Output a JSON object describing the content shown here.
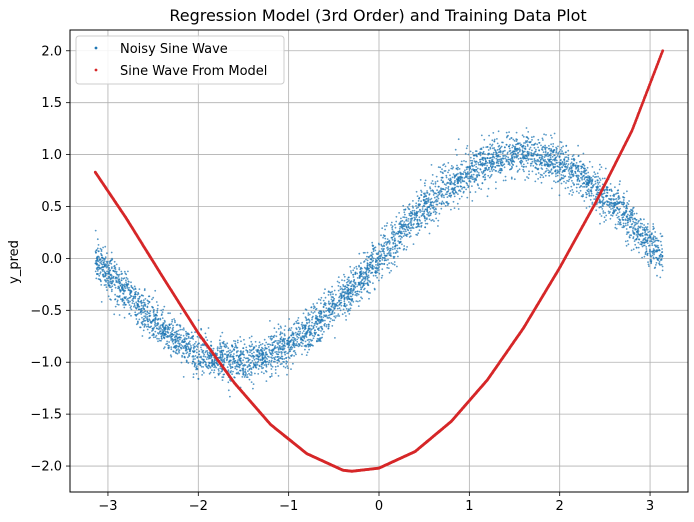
{
  "chart_data": {
    "type": "scatter",
    "title": "Regression Model (3rd Order) and Training Data Plot",
    "xlabel": "",
    "ylabel": "y_pred",
    "xlim": [
      -3.42,
      3.42
    ],
    "ylim": [
      -2.25,
      2.2
    ],
    "x_ticks": [
      -3,
      -2,
      -1,
      0,
      1,
      2,
      3
    ],
    "x_tick_labels": [
      "−3",
      "−2",
      "−1",
      "0",
      "1",
      "2",
      "3"
    ],
    "y_ticks": [
      -2.0,
      -1.5,
      -1.0,
      -0.5,
      0.0,
      0.5,
      1.0,
      1.5,
      2.0
    ],
    "y_tick_labels": [
      "−2.0",
      "−1.5",
      "−1.0",
      "−0.5",
      "0.0",
      "0.5",
      "1.0",
      "1.5",
      "2.0"
    ],
    "grid": true,
    "legend_position": "top-left",
    "series": [
      {
        "name": "Noisy Sine Wave",
        "color": "#1f77b4",
        "x": [
          -3.14,
          -3.0,
          -2.8,
          -2.6,
          -2.4,
          -2.2,
          -2.0,
          -1.8,
          -1.6,
          -1.4,
          -1.2,
          -1.0,
          -0.8,
          -0.6,
          -0.4,
          -0.2,
          0.0,
          0.2,
          0.4,
          0.6,
          0.8,
          1.0,
          1.2,
          1.4,
          1.6,
          1.8,
          2.0,
          2.2,
          2.4,
          2.6,
          2.8,
          3.0,
          3.14
        ],
        "y": [
          0.0,
          -0.14,
          -0.33,
          -0.52,
          -0.68,
          -0.81,
          -0.91,
          -0.97,
          -1.0,
          -0.99,
          -0.93,
          -0.84,
          -0.72,
          -0.56,
          -0.39,
          -0.2,
          0.0,
          0.2,
          0.39,
          0.56,
          0.72,
          0.84,
          0.93,
          0.99,
          1.0,
          0.97,
          0.91,
          0.81,
          0.68,
          0.52,
          0.33,
          0.14,
          0.0
        ],
        "noise_std": 0.1
      },
      {
        "name": "Sine Wave From Model",
        "color": "#d62728",
        "x": [
          -3.14,
          -2.8,
          -2.4,
          -2.0,
          -1.6,
          -1.2,
          -0.8,
          -0.4,
          -0.3,
          0.0,
          0.4,
          0.8,
          1.2,
          1.6,
          2.0,
          2.4,
          2.8,
          3.14
        ],
        "y": [
          0.83,
          0.39,
          -0.17,
          -0.72,
          -1.2,
          -1.6,
          -1.88,
          -2.04,
          -2.05,
          -2.02,
          -1.86,
          -1.57,
          -1.17,
          -0.67,
          -0.09,
          0.54,
          1.23,
          2.0
        ]
      }
    ]
  }
}
